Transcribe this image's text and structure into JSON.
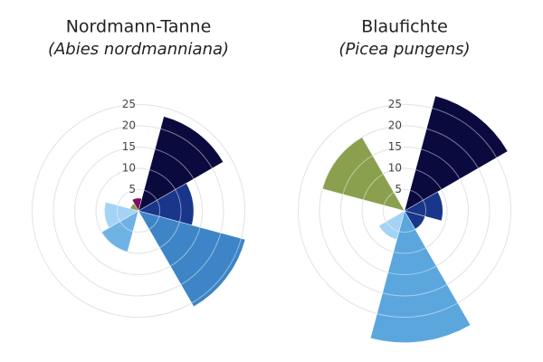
{
  "chart_data": [
    {
      "type": "polar-bar",
      "title": "Nordmann-Tanne",
      "subtitle": "(Abies nordmanniana)",
      "values": [
        23,
        13,
        26,
        0,
        10,
        8,
        2,
        3
      ],
      "colors": [
        "#0a0a3f",
        "#19368a",
        "#3d85c6",
        "#5ba7dd",
        "#6fb3e5",
        "#a5d3f5",
        "#8aa04f",
        "#7a1060"
      ],
      "rlim": [
        0,
        25
      ],
      "rticks": [
        5,
        10,
        15,
        20,
        25
      ]
    },
    {
      "type": "polar-bar",
      "title": "Blaufichte",
      "subtitle": "(Picea pungens)",
      "values": [
        28,
        9,
        5,
        31,
        7,
        0,
        20,
        0
      ],
      "colors": [
        "#0a0a3f",
        "#19368a",
        "#19368a",
        "#5ba7dd",
        "#a5d3f5",
        "#a5d3f5",
        "#8aa04f",
        "#7a1060"
      ],
      "rlim": [
        0,
        25
      ],
      "rticks": [
        5,
        10,
        15,
        20,
        25
      ]
    }
  ]
}
